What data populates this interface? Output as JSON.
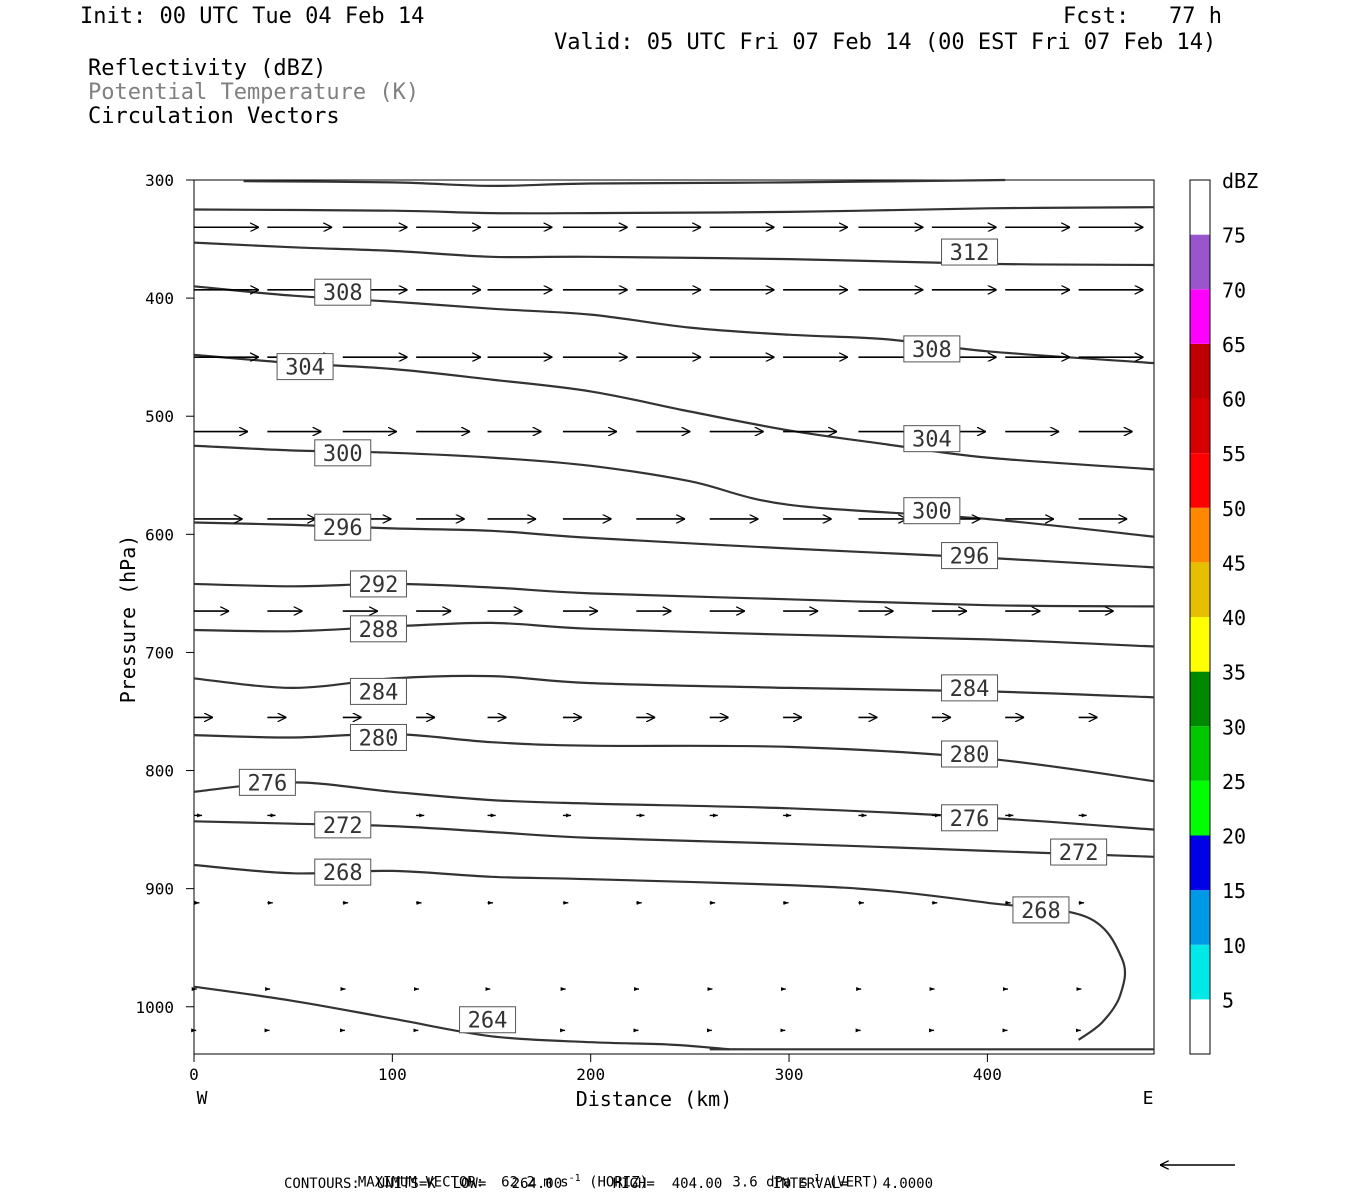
{
  "header": {
    "init": "Init: 00 UTC Tue 04 Feb 14",
    "fcst": "Fcst:   77 h",
    "valid": "Valid: 05 UTC Fri 07 Feb 14 (00 EST Fri 07 Feb 14)",
    "fields": [
      "Reflectivity (dBZ)",
      "Potential Temperature (K)",
      "Circulation Vectors"
    ]
  },
  "footer": {
    "max_vector_label": "MAXIMUM VECTOR:",
    "max_vector_horiz": "62.2 m s",
    "horiz_suffix": " (HORIZ)",
    "max_vector_vert": "3.6 dPa s",
    "vert_suffix": " (VERT)",
    "superscript": "-1",
    "contours": "CONTOURS:  UNITS=K  LOW=   264.00      HIGH=  404.00      INTERVAL=    4.0000"
  },
  "colors": {
    "contour": "#333333",
    "scale": [
      "#ffffff",
      "#00e8e8",
      "#0099e6",
      "#0000e6",
      "#00ff00",
      "#00c800",
      "#008800",
      "#ffff00",
      "#e6c000",
      "#ff8800",
      "#ff0000",
      "#d70000",
      "#c00000",
      "#ff00ff",
      "#9955cc",
      "#ffffff"
    ]
  },
  "chart_data": {
    "type": "contour",
    "xlabel": "Distance (km)",
    "ylabel": "Pressure (hPa)",
    "xlim": [
      0,
      484
    ],
    "ylim": [
      1040,
      300
    ],
    "x_ticks": [
      0,
      100,
      200,
      300,
      400
    ],
    "y_ticks": [
      300,
      400,
      500,
      600,
      700,
      800,
      900,
      1000
    ],
    "x_end_labels": [
      "W",
      "E"
    ],
    "colorbar": {
      "title": "dBZ",
      "ticks": [
        5,
        10,
        15,
        20,
        25,
        30,
        35,
        40,
        45,
        50,
        55,
        60,
        65,
        70,
        75
      ]
    },
    "contours": [
      {
        "level": 264,
        "points": [
          [
            0,
            983
          ],
          [
            50,
            995
          ],
          [
            100,
            1010
          ],
          [
            150,
            1025
          ],
          [
            200,
            1030
          ],
          [
            240,
            1032
          ],
          [
            270,
            1036
          ]
        ],
        "labels": [
          [
            148,
            1011
          ]
        ]
      },
      {
        "level": 264,
        "points": [
          [
            260,
            1036
          ],
          [
            300,
            1036
          ],
          [
            400,
            1036
          ],
          [
            484,
            1036
          ]
        ],
        "labels": []
      },
      {
        "level": 268,
        "points": [
          [
            0,
            880
          ],
          [
            50,
            887
          ],
          [
            100,
            885
          ],
          [
            150,
            890
          ],
          [
            200,
            892
          ],
          [
            300,
            897
          ],
          [
            350,
            902
          ],
          [
            400,
            912
          ],
          [
            450,
            924
          ],
          [
            468,
            960
          ],
          [
            467,
            990
          ],
          [
            458,
            1013
          ],
          [
            446,
            1028
          ]
        ],
        "labels": [
          [
            75,
            886
          ],
          [
            427,
            918
          ]
        ]
      },
      {
        "level": 272,
        "points": [
          [
            0,
            843
          ],
          [
            50,
            845
          ],
          [
            100,
            847
          ],
          [
            150,
            852
          ],
          [
            200,
            857
          ],
          [
            300,
            862
          ],
          [
            400,
            868
          ],
          [
            484,
            873
          ]
        ],
        "labels": [
          [
            75,
            846
          ],
          [
            446,
            869
          ]
        ]
      },
      {
        "level": 276,
        "points": [
          [
            0,
            818
          ],
          [
            50,
            810
          ],
          [
            100,
            818
          ],
          [
            150,
            825
          ],
          [
            200,
            828
          ],
          [
            300,
            832
          ],
          [
            400,
            840
          ],
          [
            484,
            850
          ]
        ],
        "labels": [
          [
            37,
            810
          ],
          [
            391,
            840
          ]
        ]
      },
      {
        "level": 280,
        "points": [
          [
            0,
            770
          ],
          [
            50,
            772
          ],
          [
            100,
            769
          ],
          [
            150,
            776
          ],
          [
            200,
            779
          ],
          [
            300,
            780
          ],
          [
            400,
            790
          ],
          [
            484,
            809
          ]
        ],
        "labels": [
          [
            93,
            772
          ],
          [
            391,
            786
          ]
        ]
      },
      {
        "level": 284,
        "points": [
          [
            0,
            722
          ],
          [
            50,
            730
          ],
          [
            100,
            722
          ],
          [
            150,
            720
          ],
          [
            200,
            726
          ],
          [
            300,
            730
          ],
          [
            400,
            733
          ],
          [
            484,
            738
          ]
        ],
        "labels": [
          [
            93,
            733
          ],
          [
            391,
            730
          ]
        ]
      },
      {
        "level": 288,
        "points": [
          [
            0,
            681
          ],
          [
            50,
            682
          ],
          [
            100,
            678
          ],
          [
            150,
            675
          ],
          [
            200,
            680
          ],
          [
            300,
            685
          ],
          [
            400,
            689
          ],
          [
            484,
            695
          ]
        ],
        "labels": [
          [
            93,
            680
          ]
        ]
      },
      {
        "level": 292,
        "points": [
          [
            0,
            642
          ],
          [
            50,
            644
          ],
          [
            100,
            642
          ],
          [
            150,
            645
          ],
          [
            200,
            650
          ],
          [
            300,
            655
          ],
          [
            400,
            660
          ],
          [
            484,
            661
          ]
        ],
        "labels": [
          [
            93,
            642
          ]
        ]
      },
      {
        "level": 296,
        "points": [
          [
            0,
            590
          ],
          [
            50,
            592
          ],
          [
            100,
            595
          ],
          [
            150,
            597
          ],
          [
            200,
            603
          ],
          [
            300,
            612
          ],
          [
            400,
            620
          ],
          [
            484,
            628
          ]
        ],
        "labels": [
          [
            75,
            594
          ],
          [
            391,
            618
          ]
        ]
      },
      {
        "level": 300,
        "points": [
          [
            0,
            525
          ],
          [
            50,
            529
          ],
          [
            100,
            531
          ],
          [
            150,
            535
          ],
          [
            200,
            542
          ],
          [
            250,
            555
          ],
          [
            300,
            575
          ],
          [
            400,
            587
          ],
          [
            484,
            602
          ]
        ],
        "labels": [
          [
            75,
            531
          ],
          [
            372,
            580
          ]
        ]
      },
      {
        "level": 304,
        "points": [
          [
            0,
            448
          ],
          [
            50,
            455
          ],
          [
            100,
            460
          ],
          [
            150,
            469
          ],
          [
            200,
            479
          ],
          [
            250,
            496
          ],
          [
            300,
            512
          ],
          [
            350,
            524
          ],
          [
            400,
            535
          ],
          [
            484,
            545
          ]
        ],
        "labels": [
          [
            56,
            458
          ],
          [
            372,
            519
          ]
        ]
      },
      {
        "level": 308,
        "points": [
          [
            0,
            390
          ],
          [
            50,
            398
          ],
          [
            100,
            403
          ],
          [
            150,
            409
          ],
          [
            200,
            414
          ],
          [
            250,
            425
          ],
          [
            300,
            431
          ],
          [
            350,
            435
          ],
          [
            400,
            445
          ],
          [
            484,
            455
          ]
        ],
        "labels": [
          [
            75,
            395
          ],
          [
            372,
            443
          ]
        ]
      },
      {
        "level": 312,
        "points": [
          [
            0,
            353
          ],
          [
            50,
            357
          ],
          [
            100,
            360
          ],
          [
            150,
            365
          ],
          [
            200,
            365
          ],
          [
            300,
            367
          ],
          [
            400,
            371
          ],
          [
            484,
            372
          ]
        ],
        "labels": [
          [
            391,
            361
          ]
        ]
      },
      {
        "level": 316,
        "points": [
          [
            0,
            325
          ],
          [
            100,
            326
          ],
          [
            150,
            328
          ],
          [
            200,
            328
          ],
          [
            300,
            327
          ],
          [
            400,
            324
          ],
          [
            484,
            323
          ]
        ],
        "labels": []
      },
      {
        "level": 320,
        "points": [
          [
            25,
            301
          ],
          [
            100,
            302
          ],
          [
            150,
            305
          ],
          [
            200,
            303
          ],
          [
            300,
            302
          ],
          [
            409,
            300
          ]
        ],
        "labels": []
      }
    ],
    "vector_rows": [
      {
        "p": 340,
        "u": 24
      },
      {
        "p": 393,
        "u": 24
      },
      {
        "p": 450,
        "u": 24
      },
      {
        "p": 513,
        "u": 20
      },
      {
        "p": 587,
        "u": 18
      },
      {
        "p": 665,
        "u": 13
      },
      {
        "p": 755,
        "u": 7
      },
      {
        "p": 838,
        "u": 3
      },
      {
        "p": 912,
        "u": 2
      },
      {
        "p": 985,
        "u": 1
      },
      {
        "p": 1020,
        "u": 0.8
      }
    ]
  }
}
